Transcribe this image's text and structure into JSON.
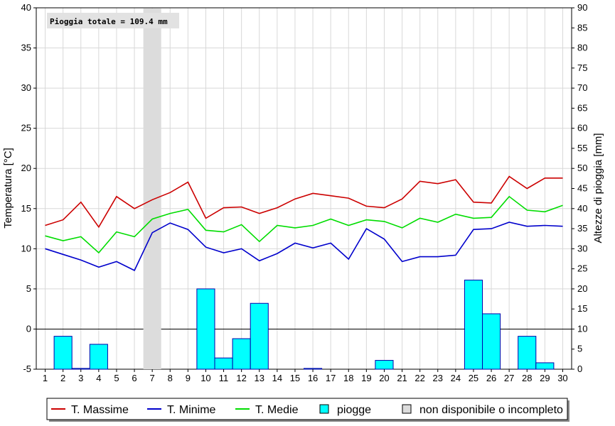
{
  "chart_data": {
    "type": "line",
    "title": "",
    "annotation": "Pioggia totale = 109.4 mm",
    "x": [
      1,
      2,
      3,
      4,
      5,
      6,
      7,
      8,
      9,
      10,
      11,
      12,
      13,
      14,
      15,
      16,
      17,
      18,
      19,
      20,
      21,
      22,
      23,
      24,
      25,
      26,
      27,
      28,
      29,
      30
    ],
    "ylabel_left": "Temperatura [°C]",
    "ylabel_right": "Altezze di pioggia [mm]",
    "ylim_left": [
      -5,
      40
    ],
    "ylim_right": [
      0,
      90
    ],
    "yticks_left": [
      -5,
      0,
      5,
      10,
      15,
      20,
      25,
      30,
      35,
      40
    ],
    "yticks_right": [
      0,
      5,
      10,
      15,
      20,
      25,
      30,
      35,
      40,
      45,
      50,
      55,
      60,
      65,
      70,
      75,
      80,
      85,
      90
    ],
    "grid": true,
    "legend_position": "bottom",
    "unavailable_days": [
      7
    ],
    "series": [
      {
        "name": "T. Massime",
        "color": "#cc0000",
        "values": [
          12.9,
          13.6,
          15.8,
          12.7,
          16.5,
          15.0,
          16.1,
          17.0,
          18.3,
          13.8,
          15.1,
          15.2,
          14.4,
          15.1,
          16.2,
          16.9,
          16.6,
          16.3,
          15.3,
          15.1,
          16.2,
          18.4,
          18.1,
          18.6,
          15.8,
          15.7,
          19.0,
          17.5,
          18.8,
          18.8
        ]
      },
      {
        "name": "T. Minime",
        "color": "#0000cc",
        "values": [
          10.0,
          9.3,
          8.6,
          7.7,
          8.4,
          7.3,
          12.0,
          13.2,
          12.4,
          10.2,
          9.5,
          10.0,
          8.5,
          9.4,
          10.7,
          10.1,
          10.7,
          8.7,
          12.5,
          11.2,
          8.4,
          9.0,
          9.0,
          9.2,
          12.4,
          12.5,
          13.3,
          12.8,
          12.9,
          12.8
        ]
      },
      {
        "name": "T. Medie",
        "color": "#00dd00",
        "values": [
          11.6,
          11.0,
          11.5,
          9.5,
          12.1,
          11.5,
          13.7,
          14.4,
          14.9,
          12.3,
          12.1,
          13.0,
          10.9,
          12.9,
          12.6,
          12.9,
          13.7,
          12.9,
          13.6,
          13.4,
          12.6,
          13.8,
          13.3,
          14.3,
          13.8,
          13.9,
          16.5,
          14.8,
          14.6,
          15.4
        ]
      },
      {
        "name": "piogge",
        "color": "#00ffff",
        "axis": "right",
        "values": [
          0,
          8.2,
          0.2,
          6.2,
          0,
          0,
          0,
          0,
          0,
          20.0,
          2.8,
          7.6,
          16.4,
          0,
          0,
          0.2,
          0,
          0,
          0,
          2.2,
          0,
          0,
          0,
          0,
          22.2,
          13.8,
          0,
          8.2,
          1.6,
          0
        ]
      }
    ],
    "legend": [
      {
        "label": "T. Massime",
        "kind": "line",
        "color": "#cc0000"
      },
      {
        "label": "T. Minime",
        "kind": "line",
        "color": "#0000cc"
      },
      {
        "label": "T. Medie",
        "kind": "line",
        "color": "#00dd00"
      },
      {
        "label": "piogge",
        "kind": "box",
        "color": "#00ffff"
      },
      {
        "label": "non disponibile o incompleto",
        "kind": "box",
        "color": "#dcdcdc"
      }
    ]
  }
}
